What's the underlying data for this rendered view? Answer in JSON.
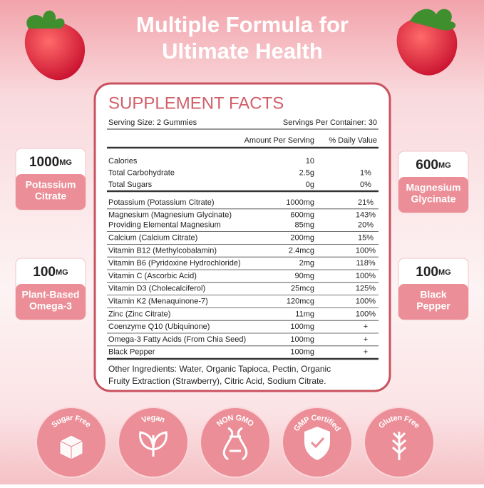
{
  "header": {
    "title_lines": [
      "Multiple Formula for",
      "Ultimate Health"
    ]
  },
  "side_badges": [
    {
      "amount": "1000",
      "unit": "MG",
      "name_lines": [
        "Potassium",
        "Citrate"
      ]
    },
    {
      "amount": "100",
      "unit": "MG",
      "name_lines": [
        "Plant-Based",
        "Omega-3"
      ]
    },
    {
      "amount": "600",
      "unit": "MG",
      "name_lines": [
        "Magnesium",
        "Glycinate"
      ]
    },
    {
      "amount": "100",
      "unit": "MG",
      "name_lines": [
        "Black",
        "Pepper"
      ]
    }
  ],
  "facts": {
    "title": "SUPPLEMENT FACTS",
    "serving_size": "Serving Size:  2 Gummies",
    "servings_per_container": "Servings Per Container: 30",
    "column_amount": "Amount Per Serving",
    "column_dv": "% Daily Value",
    "sections": [
      {
        "rows": [
          [
            {
              "name": "Calories",
              "amount": "10"
            }
          ],
          [
            {
              "name": "Total Carbohydrate",
              "amount": "2.5g",
              "dv": "1%"
            }
          ],
          [
            {
              "name": "Total Sugars",
              "amount": "0g",
              "dv": "0%"
            }
          ]
        ]
      },
      {
        "rows": [
          [
            {
              "name": "Potassium (Potassium Citrate)",
              "amount": "1000mg",
              "dv": "21%"
            }
          ],
          [
            {
              "name": "Magnesium (Magnesium Glycinate)",
              "amount": "600mg",
              "dv": "143%"
            },
            {
              "name": "Providing Elemental Magnesium",
              "amount": "85mg",
              "dv": "20%"
            }
          ],
          [
            {
              "name": "Calcium (Calcium Citrate)",
              "amount": "200mg",
              "dv": "15%"
            }
          ],
          [
            {
              "name": "Vitamin B12 (Methylcobalamin)",
              "amount": "2.4mcg",
              "dv": "100%"
            }
          ],
          [
            {
              "name": "Vitamin B6 (Pyridoxine Hydrochloride)",
              "amount": "2mg",
              "dv": "118%"
            }
          ],
          [
            {
              "name": "Vitamin C (Ascorbic Acid)",
              "amount": "90mg",
              "dv": "100%"
            }
          ],
          [
            {
              "name": "Vitamin D3 (Cholecalciferol)",
              "amount": "25mcg",
              "dv": "125%"
            }
          ],
          [
            {
              "name": "Vitamin K2 (Menaquinone-7)",
              "amount": "120mcg",
              "dv": "100%"
            }
          ],
          [
            {
              "name": "Zinc (Zinc Citrate)",
              "amount": "11mg",
              "dv": "100%"
            }
          ],
          [
            {
              "name": "Coenzyme Q10 (Ubiquinone)",
              "amount": "100mg",
              "dv": "+"
            }
          ],
          [
            {
              "name": "Omega-3 Fatty Acids (From Chia Seed)",
              "amount": "100mg",
              "dv": "+"
            }
          ],
          [
            {
              "name": "Black Pepper",
              "amount": "100mg",
              "dv": "+"
            }
          ]
        ]
      }
    ],
    "other_ingredients_lines": [
      "Other Ingredients: Water, Organic Tapioca, Pectin, Organic",
      "Fruity Extraction (Strawberry), Citric Acid, Sodium Citrate."
    ]
  },
  "badges": [
    "Sugar Free",
    "Vegan",
    "NON GMO",
    "GMP Certified",
    "Gluten Free"
  ]
}
